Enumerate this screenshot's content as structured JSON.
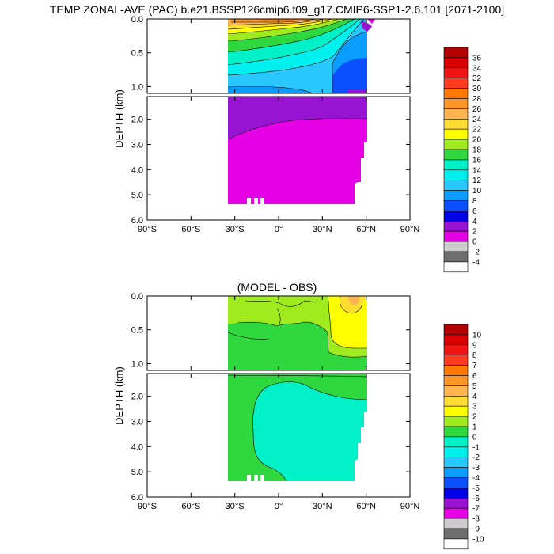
{
  "title": "TEMP ZONAL-AVE (PAC) b.e21.BSSP126cmip6.f09_g17.CMIP6-SSP1-2.6.101 [2071-2100]",
  "chart_data": [
    {
      "type": "heatmap",
      "title": "TEMP ZONAL-AVE (PAC) b.e21.BSSP126cmip6.f09_g17.CMIP6-SSP1-2.6.101 [2071-2100]",
      "ylabel": "DEPTH (km)",
      "xlim": [
        -90,
        90
      ],
      "ylim": [
        6.0,
        0.0
      ],
      "x_ticks": [
        "90°S",
        "60°S",
        "30°S",
        "0°",
        "30°N",
        "60°N",
        "90°N"
      ],
      "y_ticks_upper": [
        "0.0",
        "0.5",
        "1.0"
      ],
      "y_ticks_lower": [
        "2.0",
        "3.0",
        "4.0",
        "5.0",
        "6.0"
      ],
      "colorbar_levels": [
        "36",
        "34",
        "32",
        "30",
        "28",
        "26",
        "24",
        "22",
        "20",
        "18",
        "16",
        "14",
        "12",
        "10",
        "8",
        "6",
        "4",
        "2",
        "0",
        "-2",
        "-4"
      ],
      "colorbar_colors": [
        "#b40000",
        "#dc0000",
        "#f01414",
        "#ff3c1e",
        "#ff7800",
        "#ff9628",
        "#ffb450",
        "#ffdc32",
        "#ffff00",
        "#a0eb1e",
        "#30d840",
        "#00f0c8",
        "#00f0f0",
        "#28c8ff",
        "#0a9cff",
        "#0a50ff",
        "#0000e6",
        "#9614d2",
        "#e600e6",
        "#cccccc",
        "#6e6e6e",
        "#ffffff"
      ]
    },
    {
      "type": "heatmap",
      "title": "(MODEL - OBS)",
      "ylabel": "DEPTH (km)",
      "xlim": [
        -90,
        90
      ],
      "ylim": [
        6.0,
        0.0
      ],
      "x_ticks": [
        "90°S",
        "60°S",
        "30°S",
        "0°",
        "30°N",
        "60°N",
        "90°N"
      ],
      "y_ticks_upper": [
        "0.0",
        "0.5",
        "1.0"
      ],
      "y_ticks_lower": [
        "2.0",
        "3.0",
        "4.0",
        "5.0",
        "6.0"
      ],
      "colorbar_levels": [
        "10",
        "9",
        "8",
        "7",
        "6",
        "5",
        "4",
        "3",
        "2",
        "1",
        "0",
        "-1",
        "-2",
        "-3",
        "-4",
        "-5",
        "-6",
        "-7",
        "-8",
        "-9",
        "-10"
      ],
      "colorbar_colors": [
        "#b40000",
        "#dc0000",
        "#f01414",
        "#ff3c1e",
        "#ff7800",
        "#ff9628",
        "#ffb450",
        "#ffdc32",
        "#ffff00",
        "#a0eb1e",
        "#30d840",
        "#00f0c8",
        "#00f0f0",
        "#28c8ff",
        "#0a9cff",
        "#0a50ff",
        "#0000e6",
        "#9614d2",
        "#e600e6",
        "#cccccc",
        "#6e6e6e",
        "#ffffff"
      ]
    }
  ]
}
